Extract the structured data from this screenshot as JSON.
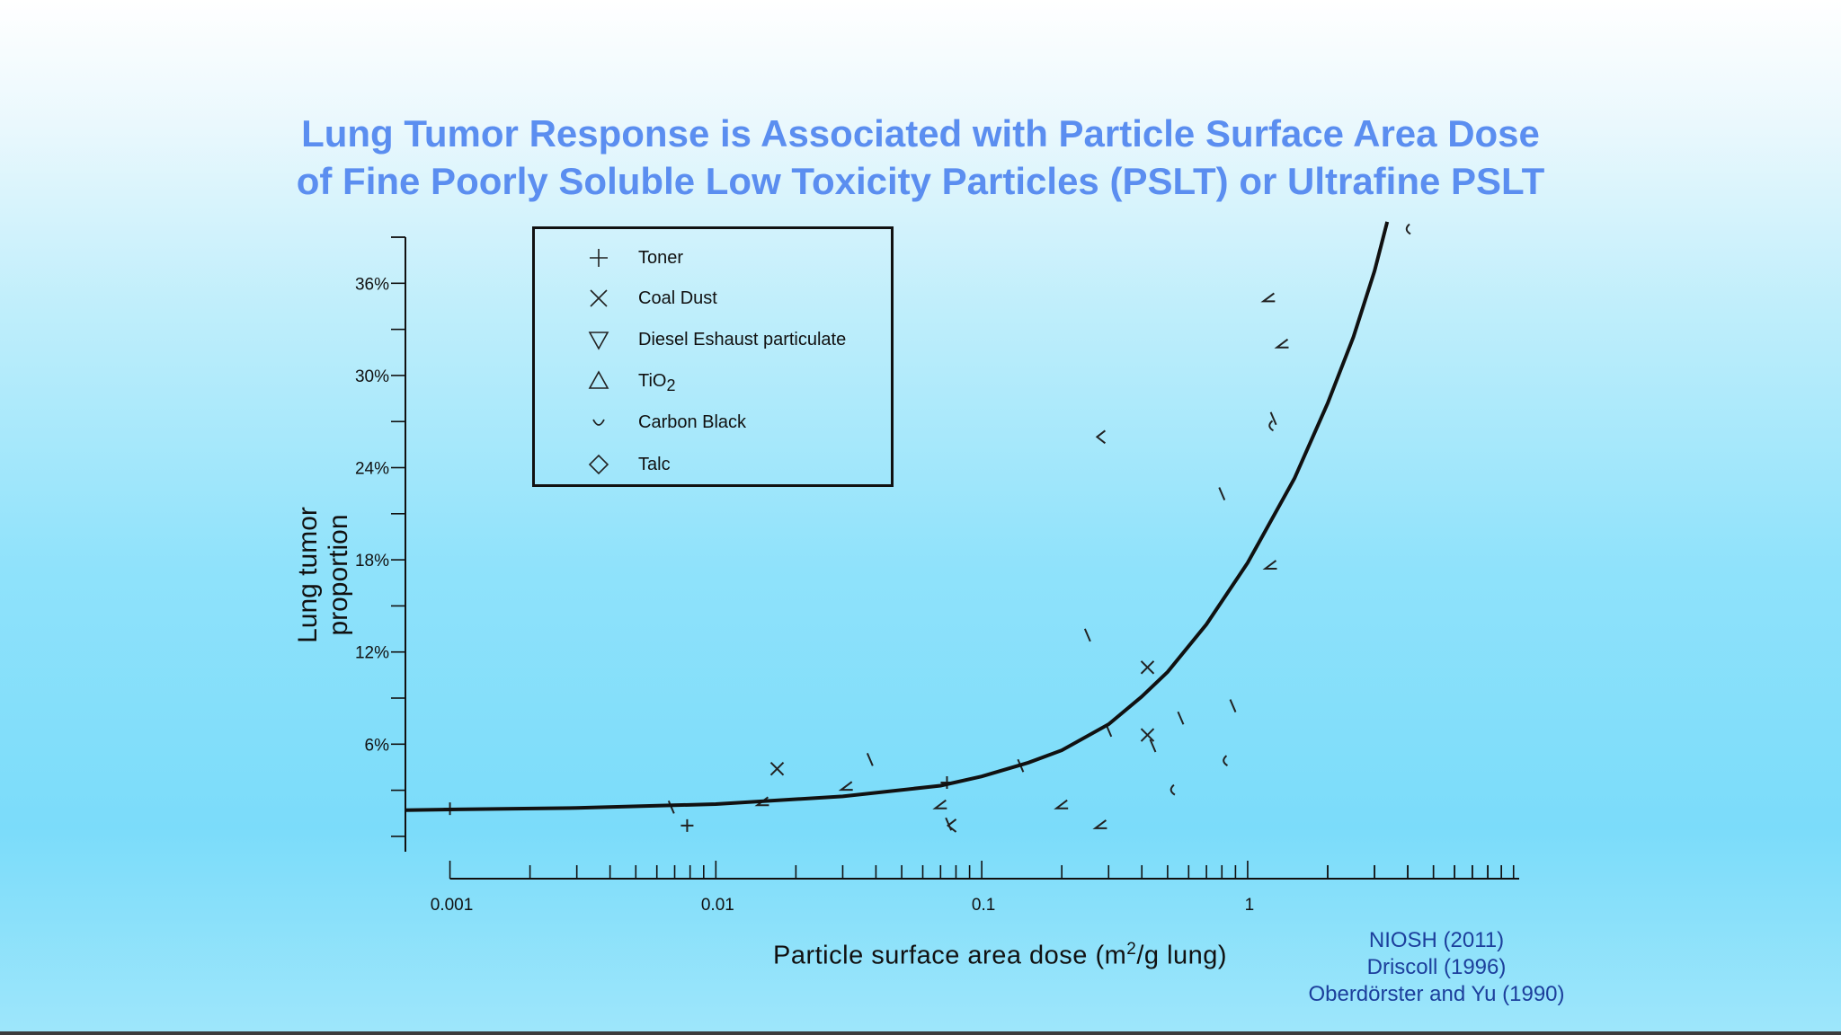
{
  "slide": {
    "title_line1": "Lung Tumor Response is Associated with Particle Surface Area Dose",
    "title_line2": "of Fine Poorly Soluble Low Toxicity Particles (PSLT) or Ultrafine PSLT",
    "references": [
      "NIOSH (2011)",
      "Driscoll (1996)",
      "Oberdörster and Yu (1990)"
    ]
  },
  "chart_data": {
    "type": "scatter",
    "xlabel_main": "Particle surface area dose (m",
    "xlabel_sup": "2",
    "xlabel_tail": "/g lung)",
    "ylabel_line1": "Lung tumor",
    "ylabel_line2": "proportion",
    "x_scale": "log",
    "x_ticks": [
      0.001,
      0.01,
      0.1,
      1
    ],
    "x_tick_labels": [
      "0.001",
      "0.01",
      "0.1",
      "1"
    ],
    "y_ticks": [
      6,
      12,
      18,
      24,
      30,
      36
    ],
    "y_tick_labels": [
      "6%",
      "12%",
      "18%",
      "24%",
      "30%",
      "36%"
    ],
    "xlim": [
      0.00068,
      10.5
    ],
    "ylim": [
      -1,
      39
    ],
    "grid": false,
    "legend_position": "top-left",
    "legend": [
      {
        "marker": "plus",
        "label": "Toner"
      },
      {
        "marker": "x",
        "label": "Coal Dust"
      },
      {
        "marker": "tri-down",
        "label": "Diesel Eshaust particulate"
      },
      {
        "marker": "tri-up",
        "label": "TiO",
        "sub": "2"
      },
      {
        "marker": "cup",
        "label": "Carbon Black"
      },
      {
        "marker": "diamond",
        "label": "Talc"
      }
    ],
    "points": [
      {
        "x": 0.001,
        "y": 1.8,
        "m": "plus"
      },
      {
        "x": 0.0078,
        "y": 0.7,
        "m": "plus"
      },
      {
        "x": 0.074,
        "y": 3.5,
        "m": "plus"
      },
      {
        "x": 0.0068,
        "y": 1.9,
        "m": "tick"
      },
      {
        "x": 0.015,
        "y": 2.2,
        "m": "angle"
      },
      {
        "x": 0.017,
        "y": 4.4,
        "m": "x"
      },
      {
        "x": 0.031,
        "y": 3.2,
        "m": "angle"
      },
      {
        "x": 0.038,
        "y": 5.0,
        "m": "tick"
      },
      {
        "x": 0.07,
        "y": 2.0,
        "m": "angle"
      },
      {
        "x": 0.077,
        "y": 0.7,
        "m": "chev"
      },
      {
        "x": 0.075,
        "y": 0.8,
        "m": "tick"
      },
      {
        "x": 0.14,
        "y": 4.6,
        "m": "tick"
      },
      {
        "x": 0.2,
        "y": 2.0,
        "m": "angle"
      },
      {
        "x": 0.25,
        "y": 13.1,
        "m": "tick"
      },
      {
        "x": 0.28,
        "y": 26.0,
        "m": "chev"
      },
      {
        "x": 0.3,
        "y": 6.9,
        "m": "tick"
      },
      {
        "x": 0.28,
        "y": 0.7,
        "m": "angle"
      },
      {
        "x": 0.42,
        "y": 11.0,
        "m": "x"
      },
      {
        "x": 0.42,
        "y": 6.6,
        "m": "x"
      },
      {
        "x": 0.44,
        "y": 5.9,
        "m": "tick"
      },
      {
        "x": 0.52,
        "y": 3.0,
        "m": "cup"
      },
      {
        "x": 0.56,
        "y": 7.7,
        "m": "tick"
      },
      {
        "x": 0.8,
        "y": 22.3,
        "m": "tick"
      },
      {
        "x": 0.88,
        "y": 8.5,
        "m": "tick"
      },
      {
        "x": 0.82,
        "y": 4.9,
        "m": "cup"
      },
      {
        "x": 1.2,
        "y": 35.0,
        "m": "angle"
      },
      {
        "x": 1.35,
        "y": 32.0,
        "m": "angle"
      },
      {
        "x": 1.25,
        "y": 27.2,
        "m": "tick"
      },
      {
        "x": 1.22,
        "y": 26.7,
        "m": "cup"
      },
      {
        "x": 1.22,
        "y": 17.6,
        "m": "angle"
      },
      {
        "x": 4.0,
        "y": 39.5,
        "m": "cup"
      }
    ],
    "curve": {
      "x": [
        0.00068,
        0.001,
        0.003,
        0.01,
        0.03,
        0.07,
        0.1,
        0.15,
        0.2,
        0.3,
        0.4,
        0.5,
        0.7,
        1.0,
        1.5,
        2.0,
        2.5,
        3.0,
        3.35
      ],
      "y": [
        1.7,
        1.75,
        1.85,
        2.1,
        2.6,
        3.3,
        3.9,
        4.8,
        5.6,
        7.3,
        9.1,
        10.7,
        13.8,
        17.8,
        23.3,
        28.2,
        32.5,
        36.8,
        40.0
      ]
    }
  }
}
